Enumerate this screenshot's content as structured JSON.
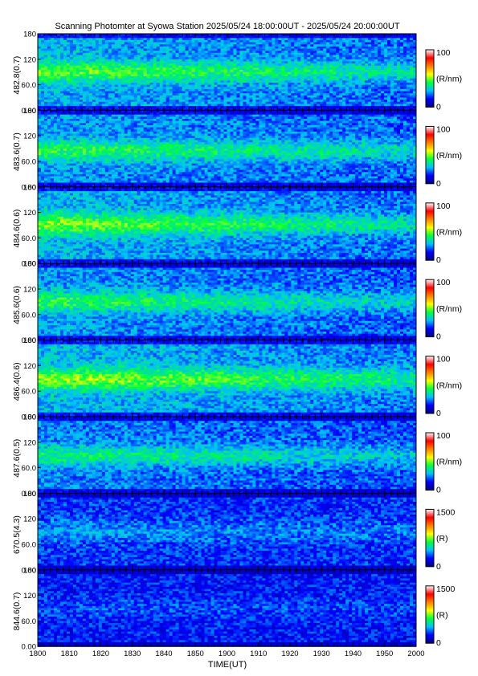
{
  "chart_data": {
    "type": "heatmap",
    "title": "Scanning Photomter at Syowa Station 2025/05/24 18:00:00UT - 2025/05/24 20:00:00UT",
    "xlabel": "TIME(UT)",
    "x_ticks": [
      "1800",
      "1810",
      "1820",
      "1830",
      "1840",
      "1850",
      "1900",
      "1910",
      "1920",
      "1930",
      "1940",
      "1950",
      "2000"
    ],
    "x_range": [
      "18:00",
      "20:00"
    ],
    "y_range": [
      0,
      180
    ],
    "y_ticks": [
      "0.00",
      "60.0",
      "120",
      "180"
    ],
    "colormap": [
      "#000080",
      "#0000ff",
      "#00c0ff",
      "#00ff40",
      "#ffff00",
      "#ff8000",
      "#ff0000",
      "#ffffff"
    ],
    "panels": [
      {
        "ylabel": "482.8(0.7)",
        "unit": "(R/nm)",
        "cmin": "0",
        "cmax": "100",
        "band_center": 90,
        "intensity_start": 45,
        "intensity_end": 28
      },
      {
        "ylabel": "483.6(0.7)",
        "unit": "(R/nm)",
        "cmin": "0",
        "cmax": "100",
        "band_center": 85,
        "intensity_start": 40,
        "intensity_end": 26
      },
      {
        "ylabel": "484.6(0.6)",
        "unit": "(R/nm)",
        "cmin": "0",
        "cmax": "100",
        "band_center": 92,
        "intensity_start": 48,
        "intensity_end": 28
      },
      {
        "ylabel": "485.6(0.6)",
        "unit": "(R/nm)",
        "cmin": "0",
        "cmax": "100",
        "band_center": 90,
        "intensity_start": 40,
        "intensity_end": 24
      },
      {
        "ylabel": "486.4(0.6)",
        "unit": "(R/nm)",
        "cmin": "0",
        "cmax": "100",
        "band_center": 88,
        "intensity_start": 50,
        "intensity_end": 32
      },
      {
        "ylabel": "487.6(0.5)",
        "unit": "(R/nm)",
        "cmin": "0",
        "cmax": "100",
        "band_center": 88,
        "intensity_start": 35,
        "intensity_end": 22
      },
      {
        "ylabel": "670.5(4.3)",
        "unit": "(R)",
        "cmin": "0",
        "cmax": "1500",
        "band_center": 90,
        "intensity_start": 18,
        "intensity_end": 14
      },
      {
        "ylabel": "844.6(0.7)",
        "unit": "(R)",
        "cmin": "0",
        "cmax": "1500",
        "band_center": 90,
        "intensity_start": 10,
        "intensity_end": 9
      }
    ]
  }
}
